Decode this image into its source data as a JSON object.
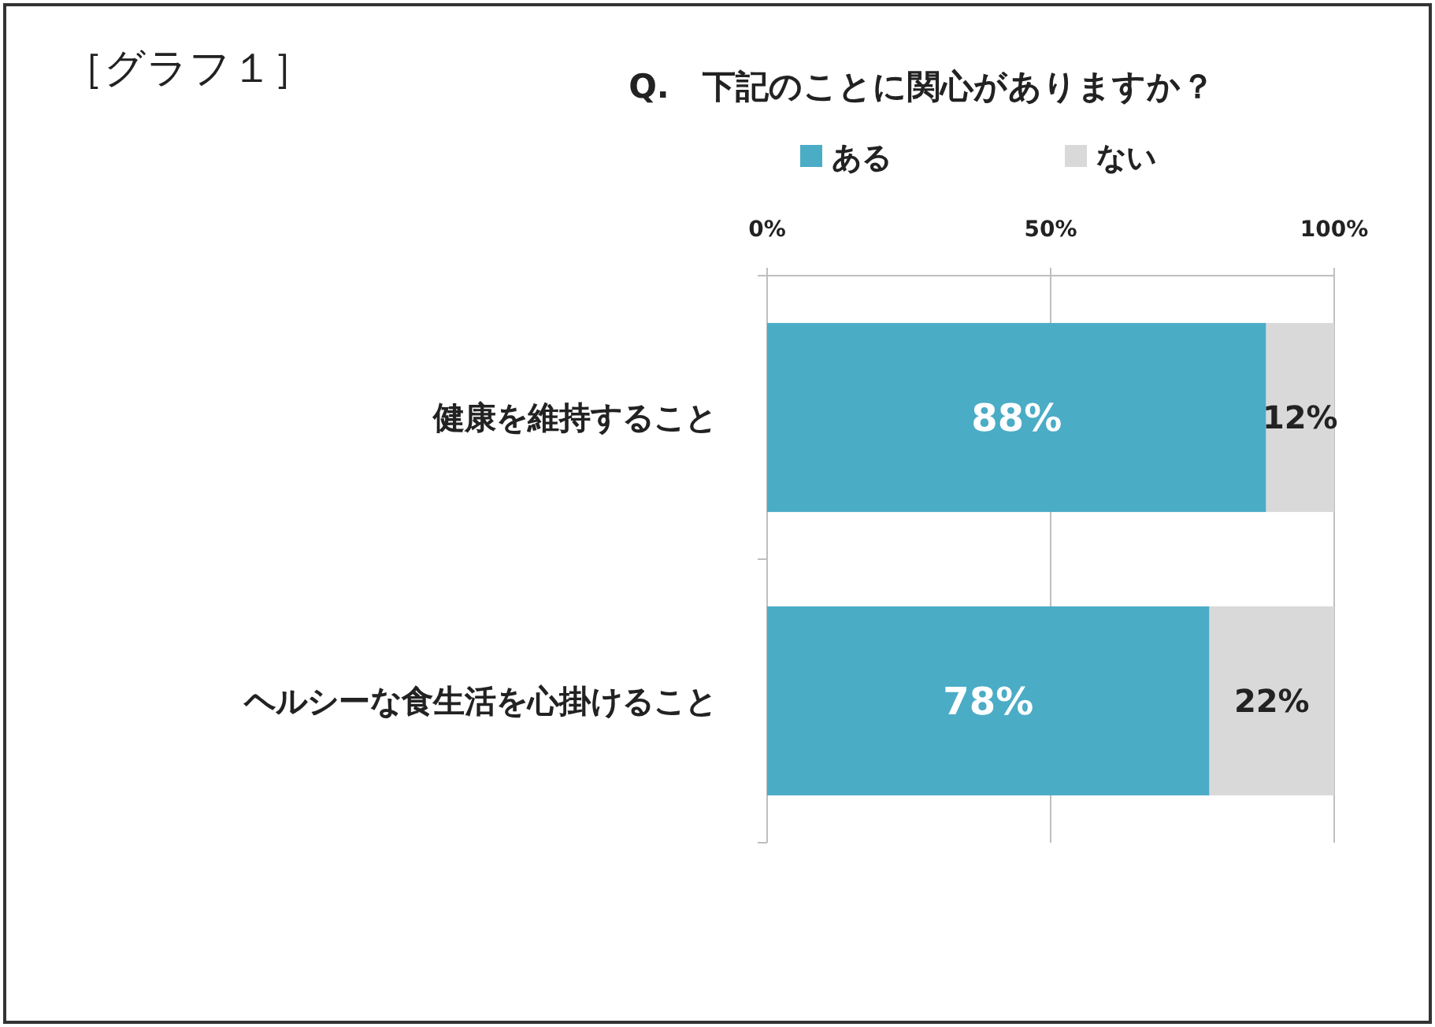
{
  "chart_data": {
    "type": "bar",
    "orientation": "horizontal",
    "stacked": true,
    "title": "Q.　下記のことに関心がありますか？",
    "annotations": [
      "［グラフ１］"
    ],
    "categories": [
      "健康を維持すること",
      "ヘルシーな食生活を心掛けること"
    ],
    "series": [
      {
        "name": "ある",
        "color": "#4bacc6",
        "values": [
          88,
          78
        ],
        "value_labels": [
          "88%",
          "78%"
        ]
      },
      {
        "name": "ない",
        "color": "#d9d9d9",
        "values": [
          12,
          22
        ],
        "value_labels": [
          "12%",
          "22%"
        ]
      }
    ],
    "xlim": [
      0,
      100
    ],
    "xticks": [
      {
        "value": 0,
        "label": "0%"
      },
      {
        "value": 50,
        "label": "50%"
      },
      {
        "value": 100,
        "label": "100%"
      }
    ],
    "grid": "x",
    "legend": "top"
  }
}
